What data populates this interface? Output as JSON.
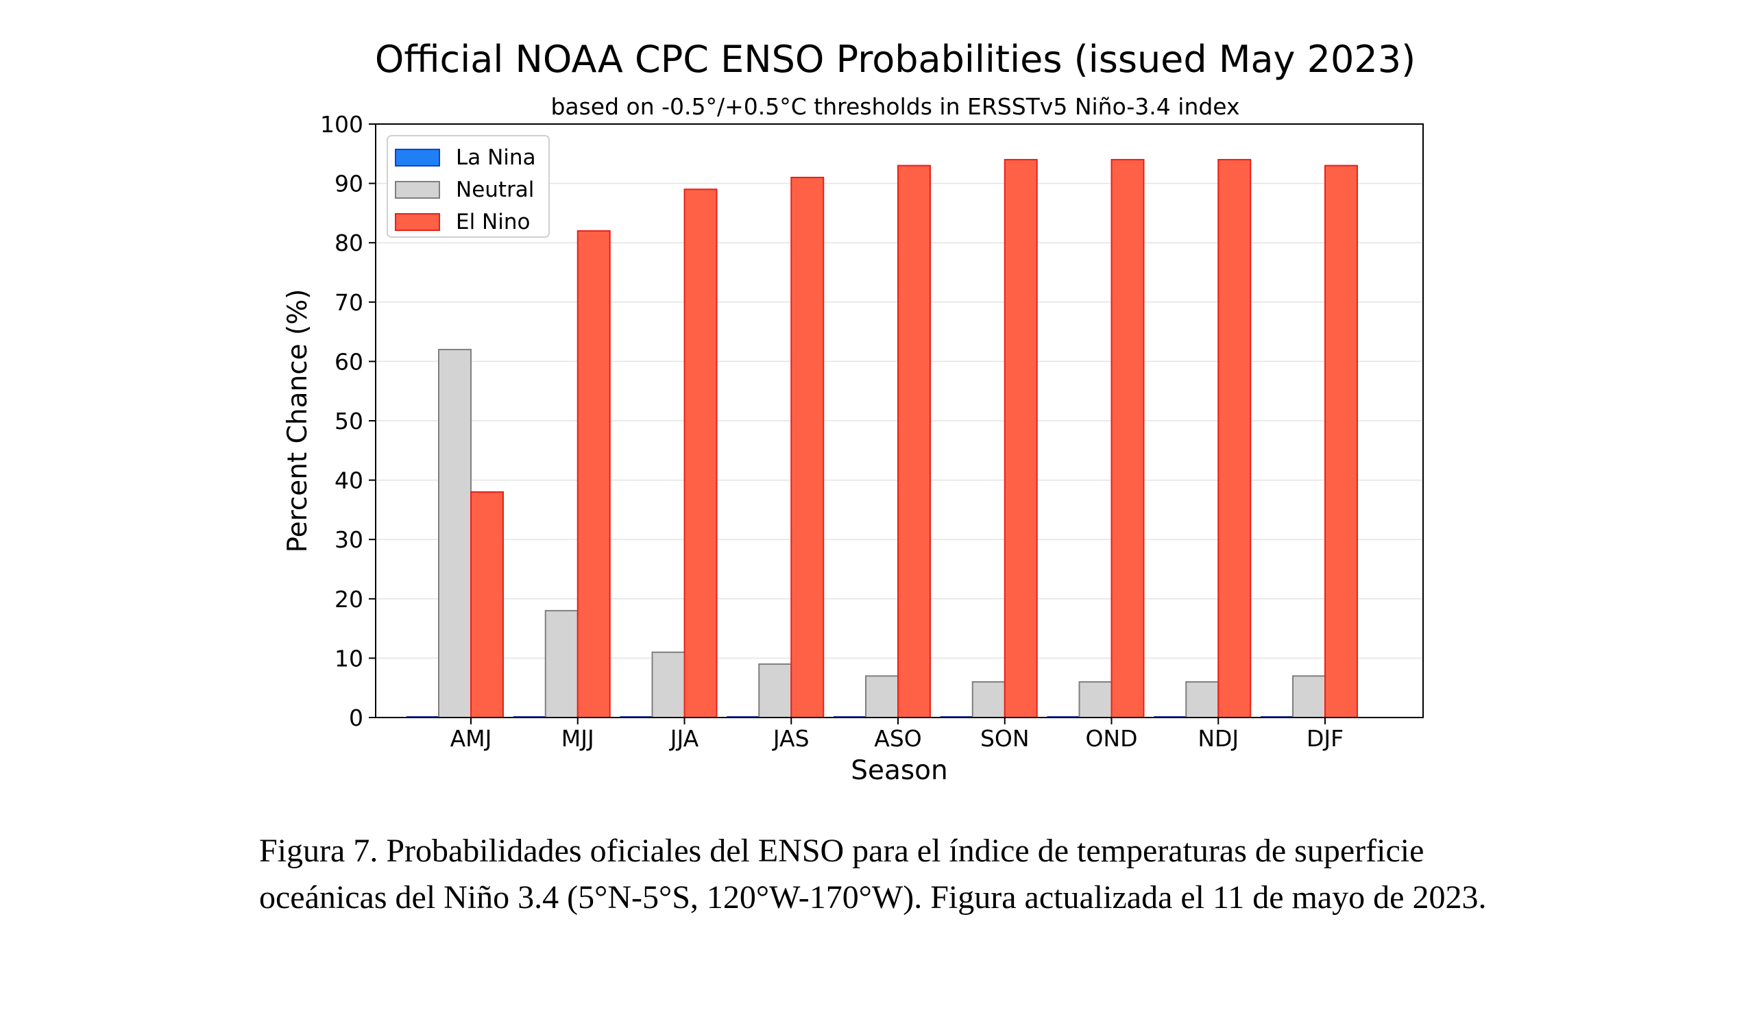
{
  "chart_data": {
    "type": "bar",
    "title": "Official NOAA CPC ENSO Probabilities (issued May 2023)",
    "subtitle": "based on -0.5°/+0.5°C thresholds in ERSSTv5 Niño-3.4 index",
    "xlabel": "Season",
    "ylabel": "Percent Chance (%)",
    "ylim": [
      0,
      100
    ],
    "yticks": [
      0,
      10,
      20,
      30,
      40,
      50,
      60,
      70,
      80,
      90,
      100
    ],
    "grid": true,
    "legend_position": "top-left",
    "categories": [
      "AMJ",
      "MJJ",
      "JJA",
      "JAS",
      "ASO",
      "SON",
      "OND",
      "NDJ",
      "DJF"
    ],
    "series": [
      {
        "name": "La Nina",
        "color": "#1f7ff5",
        "edge": "#1a3fbf",
        "values": [
          0,
          0,
          0,
          0,
          0,
          0,
          0,
          0,
          0
        ]
      },
      {
        "name": "Neutral",
        "color": "#d3d3d3",
        "edge": "#7f7f7f",
        "values": [
          62,
          18,
          11,
          9,
          7,
          6,
          6,
          6,
          7
        ]
      },
      {
        "name": "El Nino",
        "color": "#ff6147",
        "edge": "#e8201a",
        "values": [
          38,
          82,
          89,
          91,
          93,
          94,
          94,
          94,
          93
        ]
      }
    ]
  },
  "caption": {
    "line1": "Figura 7. Probabilidades oficiales del ENSO para el índice de temperaturas de superficie",
    "line2": "oceánicas del Niño 3.4 (5°N-5°S, 120°W-170°W). Figura actualizada el 11 de mayo de 2023."
  }
}
